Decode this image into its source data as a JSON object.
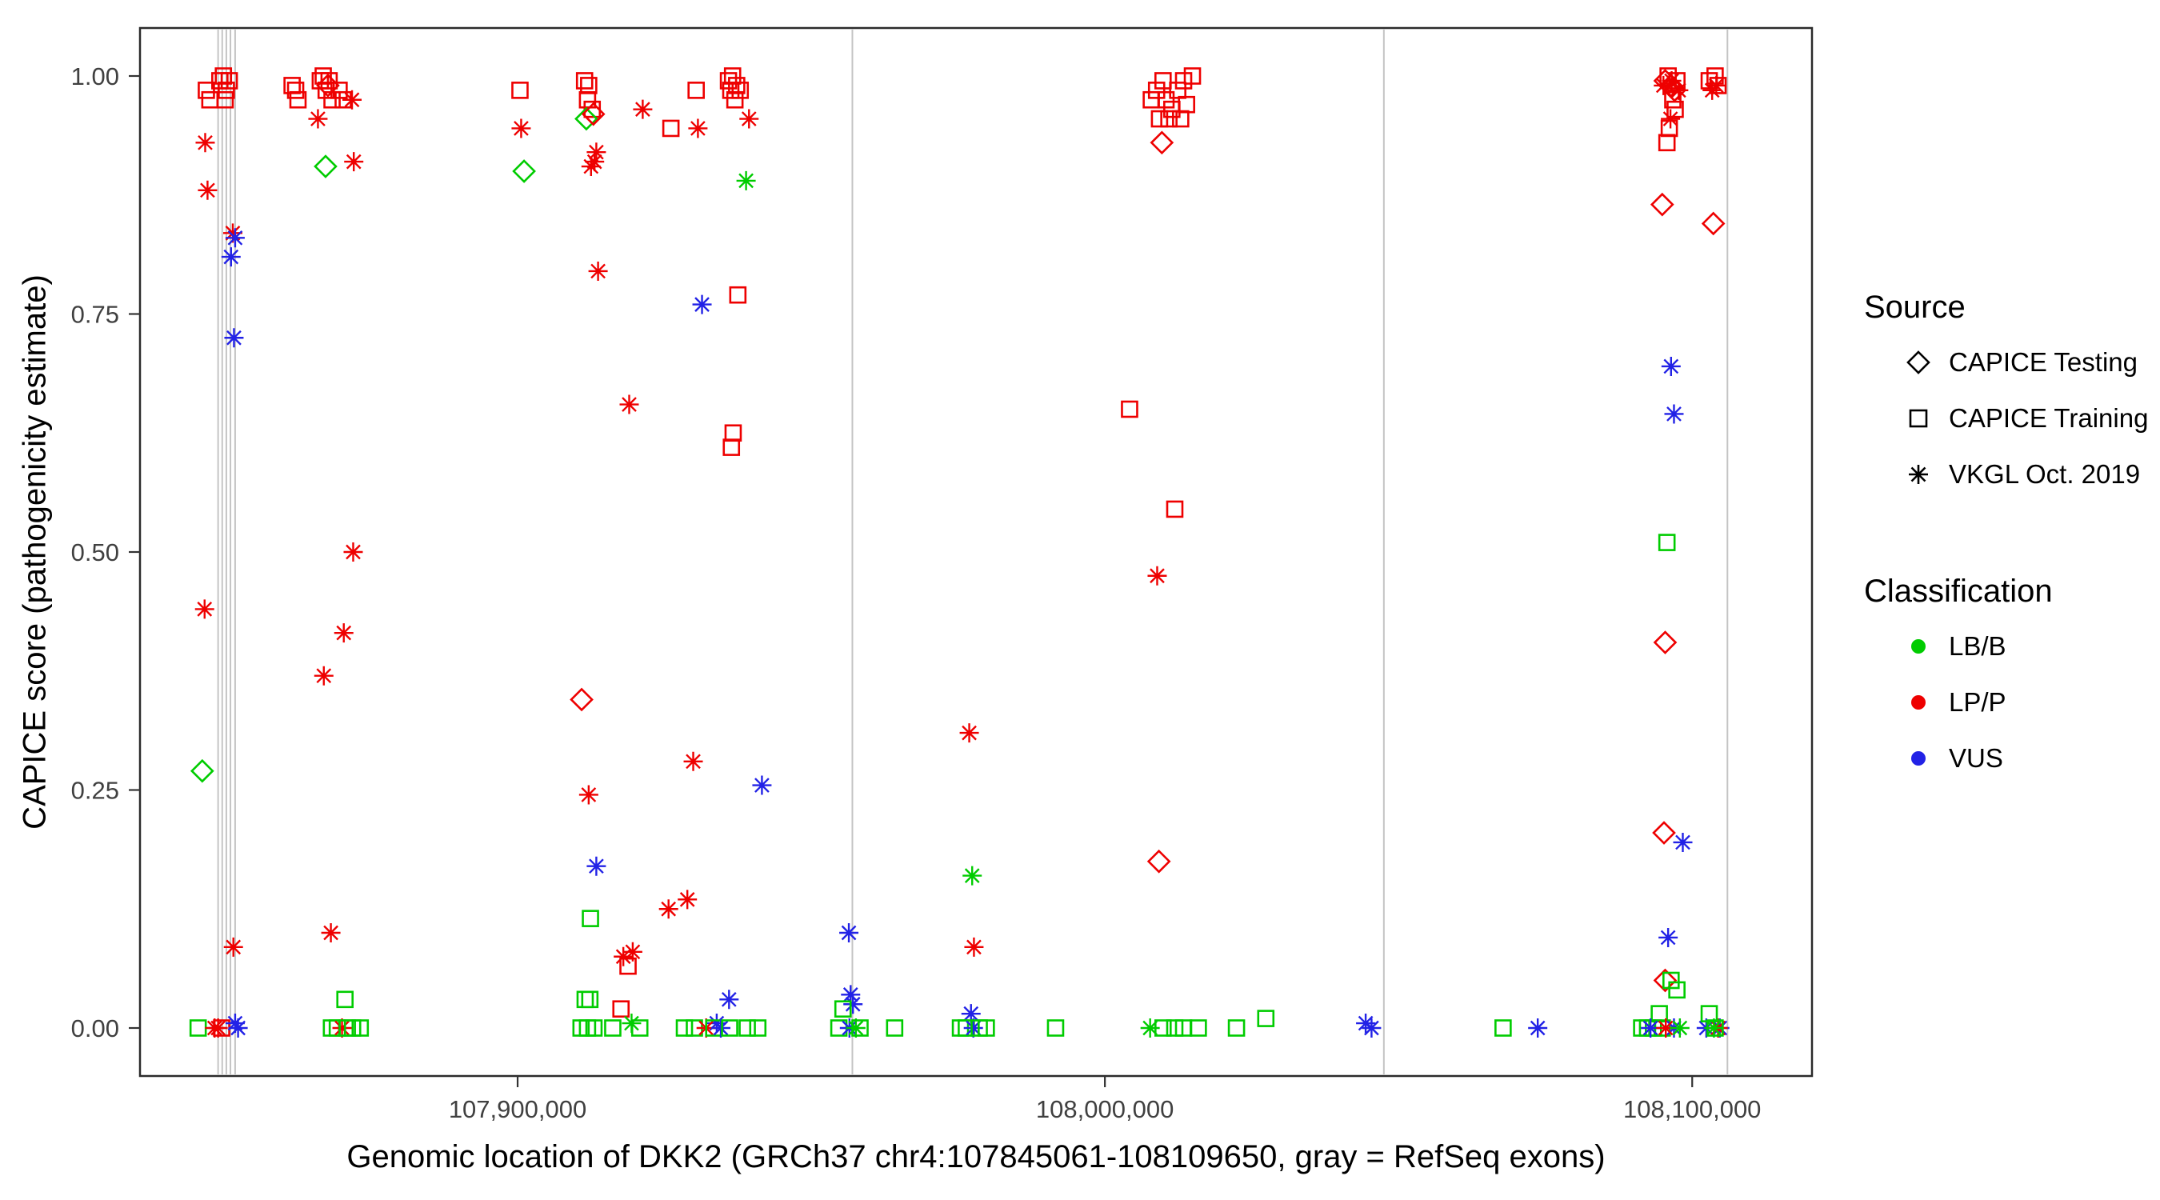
{
  "chart_data": {
    "type": "scatter",
    "title": "",
    "xlabel": "Genomic location of DKK2 (GRCh37 chr4:107845061-108109650, gray = RefSeq exons)",
    "ylabel": "CAPICE score (pathogenicity estimate)",
    "x_ticks": [
      {
        "value": 107900000,
        "label": "107,900,000"
      },
      {
        "value": 108000000,
        "label": "108,000,000"
      },
      {
        "value": 108100000,
        "label": "108,100,000"
      }
    ],
    "y_ticks": [
      {
        "value": 0,
        "label": "0.00"
      },
      {
        "value": 0.25,
        "label": "0.25"
      },
      {
        "value": 0.5,
        "label": "0.50"
      },
      {
        "value": 0.75,
        "label": "0.75"
      },
      {
        "value": 1,
        "label": "1.00"
      }
    ],
    "x_domain": [
      107835700,
      108120400
    ],
    "y_domain": [
      0,
      1
    ],
    "grid": "off",
    "legend_position": "right",
    "exon_color": "#c4c4c4",
    "refseq_exons": [
      107849000,
      107849700,
      107850400,
      107851100,
      107851900,
      107957000,
      108047500,
      108106000
    ],
    "legend": {
      "source": {
        "title": "Source",
        "items": [
          {
            "label": "CAPICE Testing",
            "shape": "diamond"
          },
          {
            "label": "CAPICE Training",
            "shape": "square"
          },
          {
            "label": "VKGL Oct. 2019",
            "shape": "asterisk"
          }
        ]
      },
      "classification": {
        "title": "Classification",
        "items": [
          {
            "label": "LB/B",
            "color": "#00CC00"
          },
          {
            "label": "LP/P",
            "color": "#EE0000"
          },
          {
            "label": "VUS",
            "color": "#2222E6"
          }
        ]
      }
    },
    "source_codes": {
      "T": "CAPICE Testing",
      "R": "CAPICE Training",
      "V": "VKGL Oct. 2019"
    },
    "class_codes": {
      "B": "LB/B",
      "P": "LP/P",
      "U": "VUS"
    },
    "class_colors": {
      "LB/B": "#00CC00",
      "LP/P": "#EE0000",
      "VUS": "#2222E6"
    },
    "points": [
      [
        107846300,
        0.27,
        "T",
        "B"
      ],
      [
        107846700,
        0.44,
        "V",
        "P"
      ],
      [
        107846800,
        0.93,
        "V",
        "P"
      ],
      [
        107847200,
        0.88,
        "V",
        "P"
      ],
      [
        107847000,
        0.985,
        "R",
        "P"
      ],
      [
        107847600,
        0.975,
        "R",
        "P"
      ],
      [
        107849300,
        0.995,
        "R",
        "P"
      ],
      [
        107849900,
        1.0,
        "R",
        "P"
      ],
      [
        107850400,
        0.985,
        "R",
        "P"
      ],
      [
        107850900,
        0.995,
        "R",
        "P"
      ],
      [
        107850200,
        0.975,
        "R",
        "P"
      ],
      [
        107851500,
        0.835,
        "V",
        "P"
      ],
      [
        107851900,
        0.83,
        "V",
        "U"
      ],
      [
        107851200,
        0.81,
        "V",
        "U"
      ],
      [
        107851700,
        0.725,
        "V",
        "U"
      ],
      [
        107851600,
        0.085,
        "V",
        "P"
      ],
      [
        107845600,
        0,
        "R",
        "B"
      ],
      [
        107848400,
        0,
        "V",
        "P"
      ],
      [
        107849000,
        0,
        "V",
        "P"
      ],
      [
        107849600,
        0,
        "R",
        "P"
      ],
      [
        107851900,
        0.005,
        "V",
        "U"
      ],
      [
        107852400,
        0,
        "V",
        "U"
      ],
      [
        107861600,
        0.99,
        "R",
        "P"
      ],
      [
        107862200,
        0.985,
        "R",
        "P"
      ],
      [
        107862600,
        0.975,
        "R",
        "P"
      ],
      [
        107866400,
        0.995,
        "R",
        "P"
      ],
      [
        107866900,
        1.0,
        "R",
        "P"
      ],
      [
        107867400,
        0.985,
        "R",
        "P"
      ],
      [
        107867900,
        0.995,
        "R",
        "P"
      ],
      [
        107868400,
        0.975,
        "R",
        "P"
      ],
      [
        107869600,
        0.985,
        "R",
        "P"
      ],
      [
        107870300,
        0.975,
        "R",
        "P"
      ],
      [
        107867700,
        0.99,
        "T",
        "P"
      ],
      [
        107866000,
        0.955,
        "V",
        "P"
      ],
      [
        107871800,
        0.975,
        "V",
        "P"
      ],
      [
        107867300,
        0.905,
        "T",
        "B"
      ],
      [
        107872100,
        0.91,
        "V",
        "P"
      ],
      [
        107872000,
        0.5,
        "V",
        "P"
      ],
      [
        107870400,
        0.415,
        "V",
        "P"
      ],
      [
        107867000,
        0.37,
        "V",
        "P"
      ],
      [
        107868200,
        0.1,
        "V",
        "P"
      ],
      [
        107870600,
        0.03,
        "R",
        "B"
      ],
      [
        107868300,
        0,
        "R",
        "B"
      ],
      [
        107869300,
        0,
        "R",
        "B"
      ],
      [
        107870100,
        0,
        "V",
        "P"
      ],
      [
        107871000,
        0,
        "R",
        "B"
      ],
      [
        107871900,
        0,
        "R",
        "B"
      ],
      [
        107873200,
        0,
        "R",
        "B"
      ],
      [
        107900400,
        0.985,
        "R",
        "P"
      ],
      [
        107900600,
        0.945,
        "V",
        "P"
      ],
      [
        107901100,
        0.9,
        "T",
        "B"
      ],
      [
        107911400,
        0.995,
        "R",
        "P"
      ],
      [
        107912100,
        0.99,
        "R",
        "P"
      ],
      [
        107911900,
        0.975,
        "R",
        "P"
      ],
      [
        107912700,
        0.965,
        "R",
        "P"
      ],
      [
        107911700,
        0.955,
        "T",
        "B"
      ],
      [
        107912900,
        0.96,
        "T",
        "P"
      ],
      [
        107913400,
        0.92,
        "V",
        "P"
      ],
      [
        107912500,
        0.905,
        "V",
        "P"
      ],
      [
        107913100,
        0.91,
        "V",
        "P"
      ],
      [
        107913700,
        0.795,
        "V",
        "P"
      ],
      [
        107910900,
        0.345,
        "T",
        "P"
      ],
      [
        107912100,
        0.245,
        "V",
        "P"
      ],
      [
        107913400,
        0.17,
        "V",
        "U"
      ],
      [
        107912400,
        0.115,
        "R",
        "B"
      ],
      [
        107911500,
        0.03,
        "R",
        "B"
      ],
      [
        107912300,
        0.03,
        "R",
        "B"
      ],
      [
        107910800,
        0,
        "R",
        "B"
      ],
      [
        107911900,
        0,
        "R",
        "B"
      ],
      [
        107913000,
        0,
        "R",
        "B"
      ],
      [
        107916200,
        0,
        "R",
        "B"
      ],
      [
        107919000,
        0.655,
        "V",
        "P"
      ],
      [
        107921300,
        0.965,
        "V",
        "P"
      ],
      [
        107918000,
        0.075,
        "V",
        "P"
      ],
      [
        107919600,
        0.08,
        "V",
        "P"
      ],
      [
        107918800,
        0.065,
        "R",
        "P"
      ],
      [
        107917600,
        0.02,
        "R",
        "P"
      ],
      [
        107919400,
        0.005,
        "V",
        "B"
      ],
      [
        107920800,
        0,
        "R",
        "B"
      ],
      [
        107925700,
        0.125,
        "V",
        "P"
      ],
      [
        107926100,
        0.945,
        "R",
        "P"
      ],
      [
        107930400,
        0.985,
        "R",
        "P"
      ],
      [
        107930700,
        0.945,
        "V",
        "P"
      ],
      [
        107929900,
        0.28,
        "V",
        "P"
      ],
      [
        107928900,
        0.135,
        "V",
        "P"
      ],
      [
        107931400,
        0.76,
        "V",
        "U"
      ],
      [
        107935900,
        0.995,
        "R",
        "P"
      ],
      [
        107936600,
        1.0,
        "R",
        "P"
      ],
      [
        107936300,
        0.985,
        "R",
        "P"
      ],
      [
        107937300,
        0.99,
        "R",
        "P"
      ],
      [
        107937000,
        0.975,
        "R",
        "P"
      ],
      [
        107937900,
        0.985,
        "R",
        "P"
      ],
      [
        107939400,
        0.955,
        "V",
        "P"
      ],
      [
        107938900,
        0.89,
        "V",
        "B"
      ],
      [
        107937500,
        0.77,
        "R",
        "P"
      ],
      [
        107936700,
        0.625,
        "R",
        "P"
      ],
      [
        107936400,
        0.61,
        "R",
        "P"
      ],
      [
        107941600,
        0.255,
        "V",
        "U"
      ],
      [
        107936000,
        0.03,
        "V",
        "U"
      ],
      [
        107933900,
        0.005,
        "V",
        "U"
      ],
      [
        107928400,
        0,
        "R",
        "B"
      ],
      [
        107930100,
        0,
        "R",
        "B"
      ],
      [
        107932100,
        0,
        "V",
        "P"
      ],
      [
        107933400,
        0,
        "R",
        "B"
      ],
      [
        107934600,
        0,
        "V",
        "U"
      ],
      [
        107936100,
        0,
        "R",
        "B"
      ],
      [
        107939100,
        0,
        "R",
        "B"
      ],
      [
        107940900,
        0,
        "R",
        "B"
      ],
      [
        107956400,
        0.1,
        "V",
        "U"
      ],
      [
        107956700,
        0.035,
        "V",
        "U"
      ],
      [
        107957100,
        0.025,
        "V",
        "U"
      ],
      [
        107955400,
        0.02,
        "R",
        "B"
      ],
      [
        107954700,
        0,
        "R",
        "B"
      ],
      [
        107956500,
        0,
        "V",
        "U"
      ],
      [
        107957600,
        0,
        "V",
        "B"
      ],
      [
        107958300,
        0,
        "R",
        "B"
      ],
      [
        107964200,
        0,
        "R",
        "B"
      ],
      [
        107976900,
        0.31,
        "V",
        "P"
      ],
      [
        107977400,
        0.16,
        "V",
        "B"
      ],
      [
        107977700,
        0.085,
        "V",
        "P"
      ],
      [
        107977200,
        0.015,
        "V",
        "U"
      ],
      [
        107975400,
        0,
        "R",
        "B"
      ],
      [
        107976400,
        0,
        "R",
        "B"
      ],
      [
        107977600,
        0,
        "V",
        "U"
      ],
      [
        107978600,
        0,
        "R",
        "B"
      ],
      [
        107979800,
        0,
        "R",
        "B"
      ],
      [
        107991600,
        0,
        "R",
        "B"
      ],
      [
        108004200,
        0.65,
        "R",
        "P"
      ],
      [
        108007900,
        0.975,
        "R",
        "P"
      ],
      [
        108008800,
        0.985,
        "R",
        "P"
      ],
      [
        108009300,
        0.955,
        "R",
        "P"
      ],
      [
        108009900,
        0.995,
        "R",
        "P"
      ],
      [
        108010400,
        0.975,
        "R",
        "P"
      ],
      [
        108010900,
        0.955,
        "R",
        "P"
      ],
      [
        108011400,
        0.965,
        "R",
        "P"
      ],
      [
        108012400,
        0.985,
        "R",
        "P"
      ],
      [
        108012900,
        0.955,
        "R",
        "P"
      ],
      [
        108013900,
        0.97,
        "R",
        "P"
      ],
      [
        108014900,
        1.0,
        "R",
        "P"
      ],
      [
        108013400,
        0.995,
        "R",
        "P"
      ],
      [
        108009700,
        0.93,
        "T",
        "P"
      ],
      [
        108011900,
        0.545,
        "R",
        "P"
      ],
      [
        108008900,
        0.475,
        "V",
        "P"
      ],
      [
        108009200,
        0.175,
        "T",
        "P"
      ],
      [
        108007700,
        0,
        "V",
        "B"
      ],
      [
        108009900,
        0,
        "R",
        "B"
      ],
      [
        108011900,
        0,
        "R",
        "B"
      ],
      [
        108013400,
        0,
        "R",
        "B"
      ],
      [
        108015900,
        0,
        "R",
        "B"
      ],
      [
        108022400,
        0,
        "R",
        "B"
      ],
      [
        108027400,
        0.01,
        "R",
        "B"
      ],
      [
        108044400,
        0.005,
        "V",
        "U"
      ],
      [
        108045400,
        0,
        "V",
        "U"
      ],
      [
        108067800,
        0,
        "R",
        "B"
      ],
      [
        108073700,
        0,
        "V",
        "U"
      ],
      [
        108095400,
        0.995,
        "T",
        "P"
      ],
      [
        108096400,
        0.99,
        "T",
        "P"
      ],
      [
        108097000,
        0.985,
        "T",
        "P"
      ],
      [
        108095900,
        1.0,
        "R",
        "P"
      ],
      [
        108097400,
        0.995,
        "R",
        "P"
      ],
      [
        108096700,
        0.975,
        "R",
        "P"
      ],
      [
        108097100,
        0.965,
        "R",
        "P"
      ],
      [
        108096100,
        0.945,
        "R",
        "P"
      ],
      [
        108095700,
        0.93,
        "R",
        "P"
      ],
      [
        108095100,
        0.99,
        "V",
        "P"
      ],
      [
        108096500,
        0.995,
        "V",
        "P"
      ],
      [
        108097700,
        0.985,
        "V",
        "P"
      ],
      [
        108096300,
        0.955,
        "V",
        "P"
      ],
      [
        108102900,
        0.995,
        "R",
        "P"
      ],
      [
        108103900,
        1.0,
        "R",
        "P"
      ],
      [
        108104400,
        0.99,
        "R",
        "P"
      ],
      [
        108103400,
        0.985,
        "V",
        "P"
      ],
      [
        108104100,
        0.99,
        "V",
        "P"
      ],
      [
        108094900,
        0.865,
        "T",
        "P"
      ],
      [
        108103600,
        0.845,
        "T",
        "P"
      ],
      [
        108096400,
        0.695,
        "V",
        "U"
      ],
      [
        108096900,
        0.645,
        "V",
        "U"
      ],
      [
        108095700,
        0.51,
        "R",
        "B"
      ],
      [
        108095400,
        0.405,
        "T",
        "P"
      ],
      [
        108095200,
        0.205,
        "T",
        "P"
      ],
      [
        108098400,
        0.195,
        "V",
        "U"
      ],
      [
        108095900,
        0.095,
        "V",
        "U"
      ],
      [
        108095400,
        0.05,
        "T",
        "P"
      ],
      [
        108096400,
        0.05,
        "R",
        "B"
      ],
      [
        108097400,
        0.04,
        "R",
        "B"
      ],
      [
        108094400,
        0.015,
        "R",
        "B"
      ],
      [
        108091400,
        0,
        "R",
        "B"
      ],
      [
        108092400,
        0,
        "R",
        "B"
      ],
      [
        108093400,
        0,
        "R",
        "B"
      ],
      [
        108094900,
        0,
        "R",
        "B"
      ],
      [
        108092900,
        0,
        "V",
        "U"
      ],
      [
        108096900,
        0,
        "V",
        "U"
      ],
      [
        108102400,
        0,
        "V",
        "U"
      ],
      [
        108104700,
        0,
        "V",
        "U"
      ],
      [
        108095500,
        0,
        "V",
        "P"
      ],
      [
        108104400,
        0,
        "V",
        "P"
      ],
      [
        108097900,
        0,
        "V",
        "B"
      ],
      [
        108103700,
        0,
        "V",
        "B"
      ],
      [
        108102900,
        0.015,
        "R",
        "B"
      ],
      [
        108103900,
        0,
        "R",
        "B"
      ]
    ]
  }
}
